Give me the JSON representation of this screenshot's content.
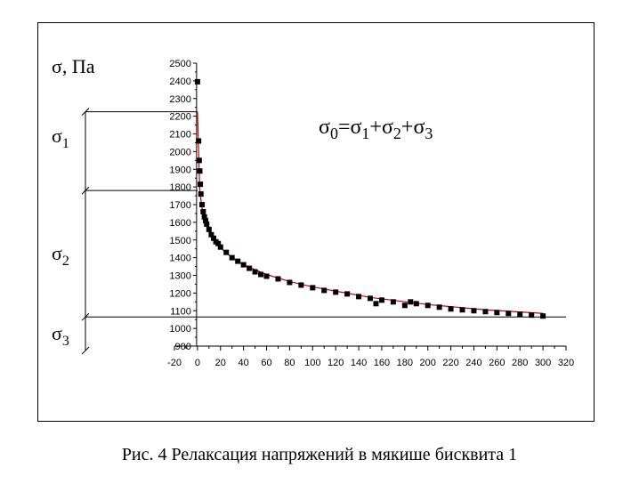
{
  "figure": {
    "caption": "Рис. 4 Релаксация напряжений в мякише бисквита 1",
    "y_axis_title": "σ, Па",
    "equation": {
      "s0": "σ",
      "sub0": "0",
      "eq": "=",
      "s1": "σ",
      "sub1": "1",
      "plus1": "+",
      "s2": "σ",
      "sub2": "2",
      "plus2": "+",
      "s3": "σ",
      "sub3": "3"
    },
    "brackets": [
      {
        "symbol": "σ",
        "sub": "1",
        "from": 1780,
        "to": 2225
      },
      {
        "symbol": "σ",
        "sub": "2",
        "from": 1065,
        "to": 1780
      },
      {
        "symbol": "σ",
        "sub": "3",
        "from": 900,
        "to": 1065
      }
    ]
  },
  "chart_data": {
    "type": "scatter",
    "xlim": [
      -20,
      320
    ],
    "ylim": [
      900,
      2500
    ],
    "x_ticks": [
      -20,
      0,
      20,
      40,
      60,
      80,
      100,
      120,
      140,
      160,
      180,
      200,
      220,
      240,
      260,
      280,
      300,
      320
    ],
    "y_ticks": [
      900,
      1000,
      1100,
      1200,
      1300,
      1400,
      1500,
      1600,
      1700,
      1800,
      1900,
      2000,
      2100,
      2200,
      2300,
      2400,
      2500
    ],
    "grid": false,
    "colors": {
      "points": "#000000",
      "fit": "#cc0000",
      "axes": "#000000"
    },
    "series": [
      {
        "kind": "points",
        "x": [
          0,
          1,
          1.5,
          2,
          2.5,
          3,
          4,
          5,
          6,
          7,
          8,
          10,
          12,
          14,
          16,
          18,
          20,
          25,
          30,
          35,
          40,
          45,
          50,
          55,
          60,
          70,
          80,
          90,
          100,
          110,
          120,
          130,
          140,
          150,
          155,
          160,
          170,
          180,
          185,
          190,
          200,
          210,
          220,
          230,
          240,
          250,
          260,
          270,
          280,
          290,
          300
        ],
        "y": [
          2395,
          2060,
          1950,
          1890,
          1815,
          1760,
          1700,
          1660,
          1630,
          1610,
          1590,
          1560,
          1530,
          1510,
          1490,
          1480,
          1460,
          1430,
          1400,
          1380,
          1360,
          1340,
          1320,
          1305,
          1295,
          1280,
          1260,
          1245,
          1230,
          1215,
          1205,
          1195,
          1180,
          1170,
          1140,
          1160,
          1150,
          1130,
          1150,
          1140,
          1130,
          1120,
          1110,
          1105,
          1100,
          1095,
          1090,
          1085,
          1080,
          1075,
          1070
        ]
      },
      {
        "kind": "fit-line",
        "x": [
          0,
          2,
          4,
          6,
          8,
          10,
          15,
          20,
          30,
          40,
          60,
          80,
          100,
          150,
          200,
          250,
          300
        ],
        "y": [
          2225,
          1780,
          1680,
          1620,
          1580,
          1550,
          1495,
          1455,
          1400,
          1360,
          1305,
          1265,
          1235,
          1175,
          1135,
          1105,
          1085
        ]
      }
    ]
  }
}
